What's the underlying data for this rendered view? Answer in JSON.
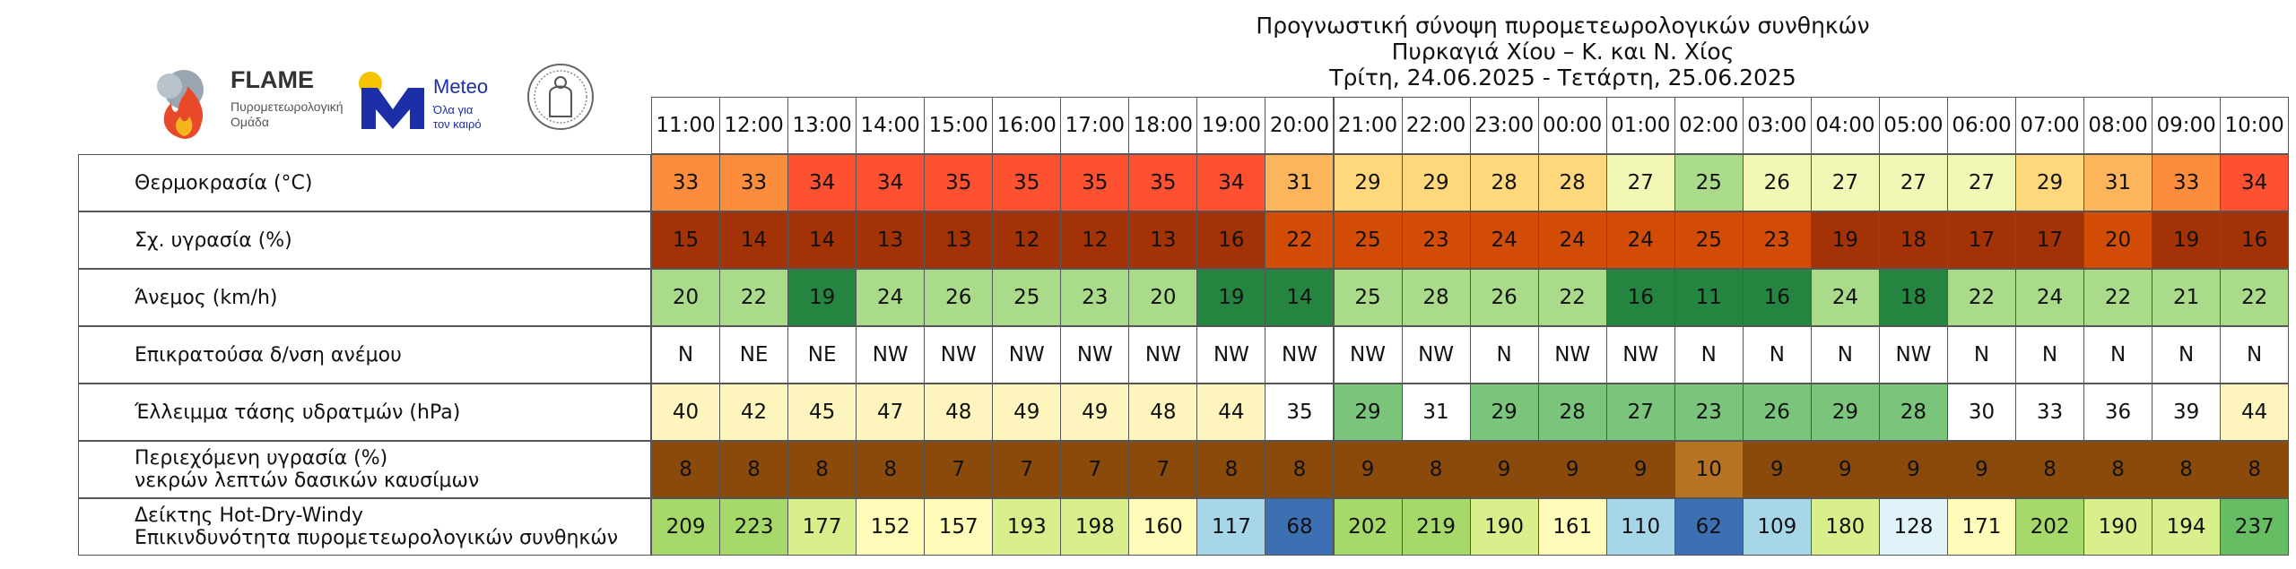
{
  "title_lines": [
    "Προγνωστική σύνοψη πυρομετεωρολογικών συνθηκών",
    "Πυρκαγιά Χίου – Κ. και Ν. Χίος",
    "Τρίτη, 24.06.2025 - Τετάρτη, 25.06.2025"
  ],
  "logos": {
    "flame_title": "FLAME",
    "flame_sub1": "Πυρομετεωρολογική",
    "flame_sub2": "Ομάδα",
    "meteo_title": "Meteo",
    "meteo_sub1": "Όλα για",
    "meteo_sub2": "τον καιρό",
    "flame_color": "#d92b2b",
    "meteo_color": "#1c2fa6"
  },
  "chart_data": {
    "type": "table",
    "hours": [
      "11:00",
      "12:00",
      "13:00",
      "14:00",
      "15:00",
      "16:00",
      "17:00",
      "18:00",
      "19:00",
      "20:00",
      "21:00",
      "22:00",
      "23:00",
      "00:00",
      "01:00",
      "02:00",
      "03:00",
      "04:00",
      "05:00",
      "06:00",
      "07:00",
      "08:00",
      "09:00",
      "10:00"
    ],
    "rows": [
      {
        "label": [
          "Θερμοκρασία (°C)"
        ],
        "values": [
          33,
          33,
          34,
          34,
          35,
          35,
          35,
          35,
          34,
          31,
          29,
          29,
          28,
          28,
          27,
          25,
          26,
          27,
          27,
          27,
          29,
          31,
          33,
          34
        ],
        "colors": [
          "#fc8d3c",
          "#fc8d3c",
          "#fd5131",
          "#fd5131",
          "#fd5131",
          "#fd5131",
          "#fd5131",
          "#fd5131",
          "#fd5131",
          "#fdb55c",
          "#fed87a",
          "#fed87a",
          "#fed87a",
          "#fed87a",
          "#f3f7b6",
          "#a9db8a",
          "#f3f7b6",
          "#f3f7b6",
          "#f3f7b6",
          "#f3f7b6",
          "#fed87a",
          "#fdb55c",
          "#fc8d3c",
          "#fd5131"
        ]
      },
      {
        "label": [
          "Σχ. υγρασία (%)"
        ],
        "values": [
          15,
          14,
          14,
          13,
          13,
          12,
          12,
          13,
          16,
          22,
          25,
          23,
          24,
          24,
          24,
          25,
          23,
          19,
          18,
          17,
          17,
          20,
          19,
          16
        ],
        "colors": [
          "#a33207",
          "#a33207",
          "#a33207",
          "#a33207",
          "#a33207",
          "#a33207",
          "#a33207",
          "#a33207",
          "#a33207",
          "#d24c05",
          "#d24c05",
          "#d24c05",
          "#d24c05",
          "#d24c05",
          "#d24c05",
          "#d24c05",
          "#d24c05",
          "#a33207",
          "#a33207",
          "#a33207",
          "#a33207",
          "#d24c05",
          "#a33207",
          "#a33207"
        ]
      },
      {
        "label": [
          "Άνεμος (km/h)"
        ],
        "values": [
          20,
          22,
          19,
          24,
          26,
          25,
          23,
          20,
          19,
          14,
          25,
          28,
          26,
          22,
          16,
          11,
          16,
          24,
          18,
          22,
          24,
          22,
          21,
          22
        ],
        "colors": [
          "#a9db8a",
          "#a9db8a",
          "#248440",
          "#a9db8a",
          "#a9db8a",
          "#a9db8a",
          "#a9db8a",
          "#a9db8a",
          "#248440",
          "#248440",
          "#a9db8a",
          "#a9db8a",
          "#a9db8a",
          "#a9db8a",
          "#248440",
          "#248440",
          "#248440",
          "#a9db8a",
          "#248440",
          "#a9db8a",
          "#a9db8a",
          "#a9db8a",
          "#a9db8a",
          "#a9db8a"
        ]
      },
      {
        "label": [
          "Επικρατούσα δ/νση ανέμου"
        ],
        "values": [
          "N",
          "NE",
          "NE",
          "NW",
          "NW",
          "NW",
          "NW",
          "NW",
          "NW",
          "NW",
          "NW",
          "NW",
          "N",
          "NW",
          "NW",
          "N",
          "N",
          "N",
          "NW",
          "N",
          "N",
          "N",
          "N",
          "N"
        ],
        "colors": [
          "#ffffff",
          "#ffffff",
          "#ffffff",
          "#ffffff",
          "#ffffff",
          "#ffffff",
          "#ffffff",
          "#ffffff",
          "#ffffff",
          "#ffffff",
          "#ffffff",
          "#ffffff",
          "#ffffff",
          "#ffffff",
          "#ffffff",
          "#ffffff",
          "#ffffff",
          "#ffffff",
          "#ffffff",
          "#ffffff",
          "#ffffff",
          "#ffffff",
          "#ffffff",
          "#ffffff"
        ]
      },
      {
        "label": [
          "Έλλειμμα τάσης υδρατμών (hPa)"
        ],
        "values": [
          40,
          42,
          45,
          47,
          48,
          49,
          49,
          48,
          44,
          35,
          29,
          31,
          29,
          28,
          27,
          23,
          26,
          29,
          28,
          30,
          33,
          36,
          39,
          44
        ],
        "colors": [
          "#fdf5bd",
          "#fdf5bd",
          "#fdf5bd",
          "#fdf5bd",
          "#fdf5bd",
          "#fdf5bd",
          "#fdf5bd",
          "#fdf5bd",
          "#fdf5bd",
          "#ffffff",
          "#7ac57b",
          "#ffffff",
          "#7ac57b",
          "#7ac57b",
          "#7ac57b",
          "#7ac57b",
          "#7ac57b",
          "#7ac57b",
          "#7ac57b",
          "#ffffff",
          "#ffffff",
          "#ffffff",
          "#ffffff",
          "#fdf5bd"
        ]
      },
      {
        "label": [
          "Περιεχόμενη υγρασία (%)",
          "νεκρών λεπτών δασικών καυσίμων"
        ],
        "values": [
          8,
          8,
          8,
          8,
          7,
          7,
          7,
          7,
          8,
          8,
          9,
          8,
          9,
          9,
          9,
          10,
          9,
          9,
          9,
          9,
          8,
          8,
          8,
          8
        ],
        "colors": [
          "#8a4a0b",
          "#8a4a0b",
          "#8a4a0b",
          "#8a4a0b",
          "#8a4a0b",
          "#8a4a0b",
          "#8a4a0b",
          "#8a4a0b",
          "#8a4a0b",
          "#8a4a0b",
          "#8a4a0b",
          "#8a4a0b",
          "#8a4a0b",
          "#8a4a0b",
          "#8a4a0b",
          "#b67324",
          "#8a4a0b",
          "#8a4a0b",
          "#8a4a0b",
          "#8a4a0b",
          "#8a4a0b",
          "#8a4a0b",
          "#8a4a0b",
          "#8a4a0b"
        ]
      },
      {
        "label": [
          "Δείκτης Hot-Dry-Windy",
          "Επικινδυνότητα πυρομετεωρολογικών συνθηκών"
        ],
        "values": [
          209,
          223,
          177,
          152,
          157,
          193,
          198,
          160,
          117,
          68,
          202,
          219,
          190,
          161,
          110,
          62,
          109,
          180,
          128,
          171,
          202,
          190,
          194,
          237
        ],
        "colors": [
          "#a6d96a",
          "#a6d96a",
          "#d9ef8b",
          "#fffbb8",
          "#fffbb8",
          "#d9ef8b",
          "#d9ef8b",
          "#fffbb8",
          "#a8d6e9",
          "#3d6fb3",
          "#a6d96a",
          "#a6d96a",
          "#d9ef8b",
          "#fffbb8",
          "#a8d6e9",
          "#3d6fb3",
          "#a8d6e9",
          "#d9ef8b",
          "#e0f3f8",
          "#fffbb8",
          "#a6d96a",
          "#d9ef8b",
          "#d9ef8b",
          "#66bd63"
        ]
      }
    ]
  }
}
